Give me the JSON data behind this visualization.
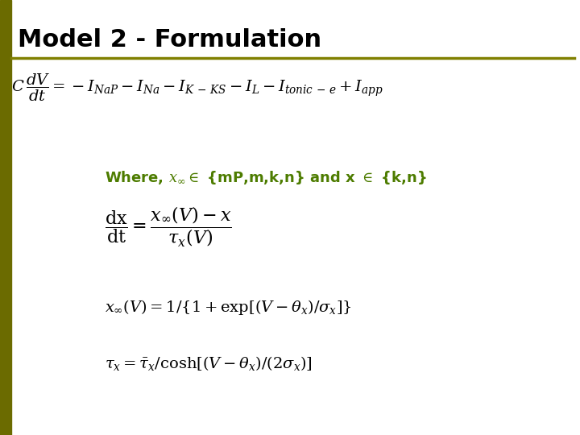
{
  "title": "Model 2 - Formulation",
  "title_color": "#000000",
  "title_fontsize": 22,
  "background_color": "#ffffff",
  "line_color": "#808000",
  "where_color": "#4d7c00",
  "where_fontsize": 13,
  "eq_color": "#000000",
  "eq1_fontsize": 14,
  "eq2_fontsize": 16,
  "eq3_fontsize": 14,
  "eq4_fontsize": 14,
  "left_bar_color": "#6b6b00",
  "left_bar_width": 10
}
